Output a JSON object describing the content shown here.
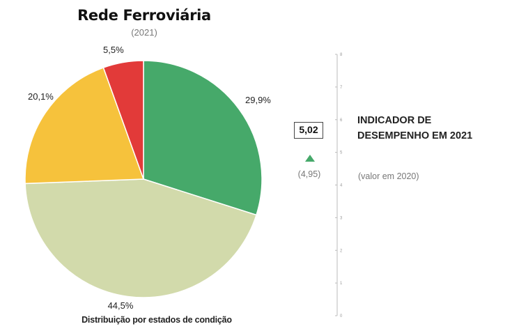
{
  "title": "Rede Ferroviária",
  "subtitle": "(2021)",
  "caption": "Distribuição por estados de condição",
  "indicator": {
    "value": "5,02",
    "previous_value": "(4,95)",
    "title_line1": "INDICADOR DE",
    "title_line2": "DESEMPENHO EM 2021",
    "previous_label": "(valor em 2020)",
    "trend_color": "#46a96a",
    "trend_icon": "triangle-up-icon",
    "scale_ticks": [
      "0",
      "1",
      "2",
      "3",
      "4",
      "5",
      "6",
      "7",
      "8"
    ]
  },
  "chart_data": {
    "type": "pie",
    "title": "Rede Ferroviária",
    "subtitle": "(2021)",
    "caption": "Distribuição por estados de condição",
    "slices": [
      {
        "label": "29,9%",
        "value": 29.9,
        "color": "#46a96a"
      },
      {
        "label": "44,5%",
        "value": 44.5,
        "color": "#d2daab"
      },
      {
        "label": "20,1%",
        "value": 20.1,
        "color": "#f6c23c"
      },
      {
        "label": "5,5%",
        "value": 5.5,
        "color": "#e23a39"
      }
    ],
    "start": "12 o'clock",
    "direction": "clockwise"
  }
}
